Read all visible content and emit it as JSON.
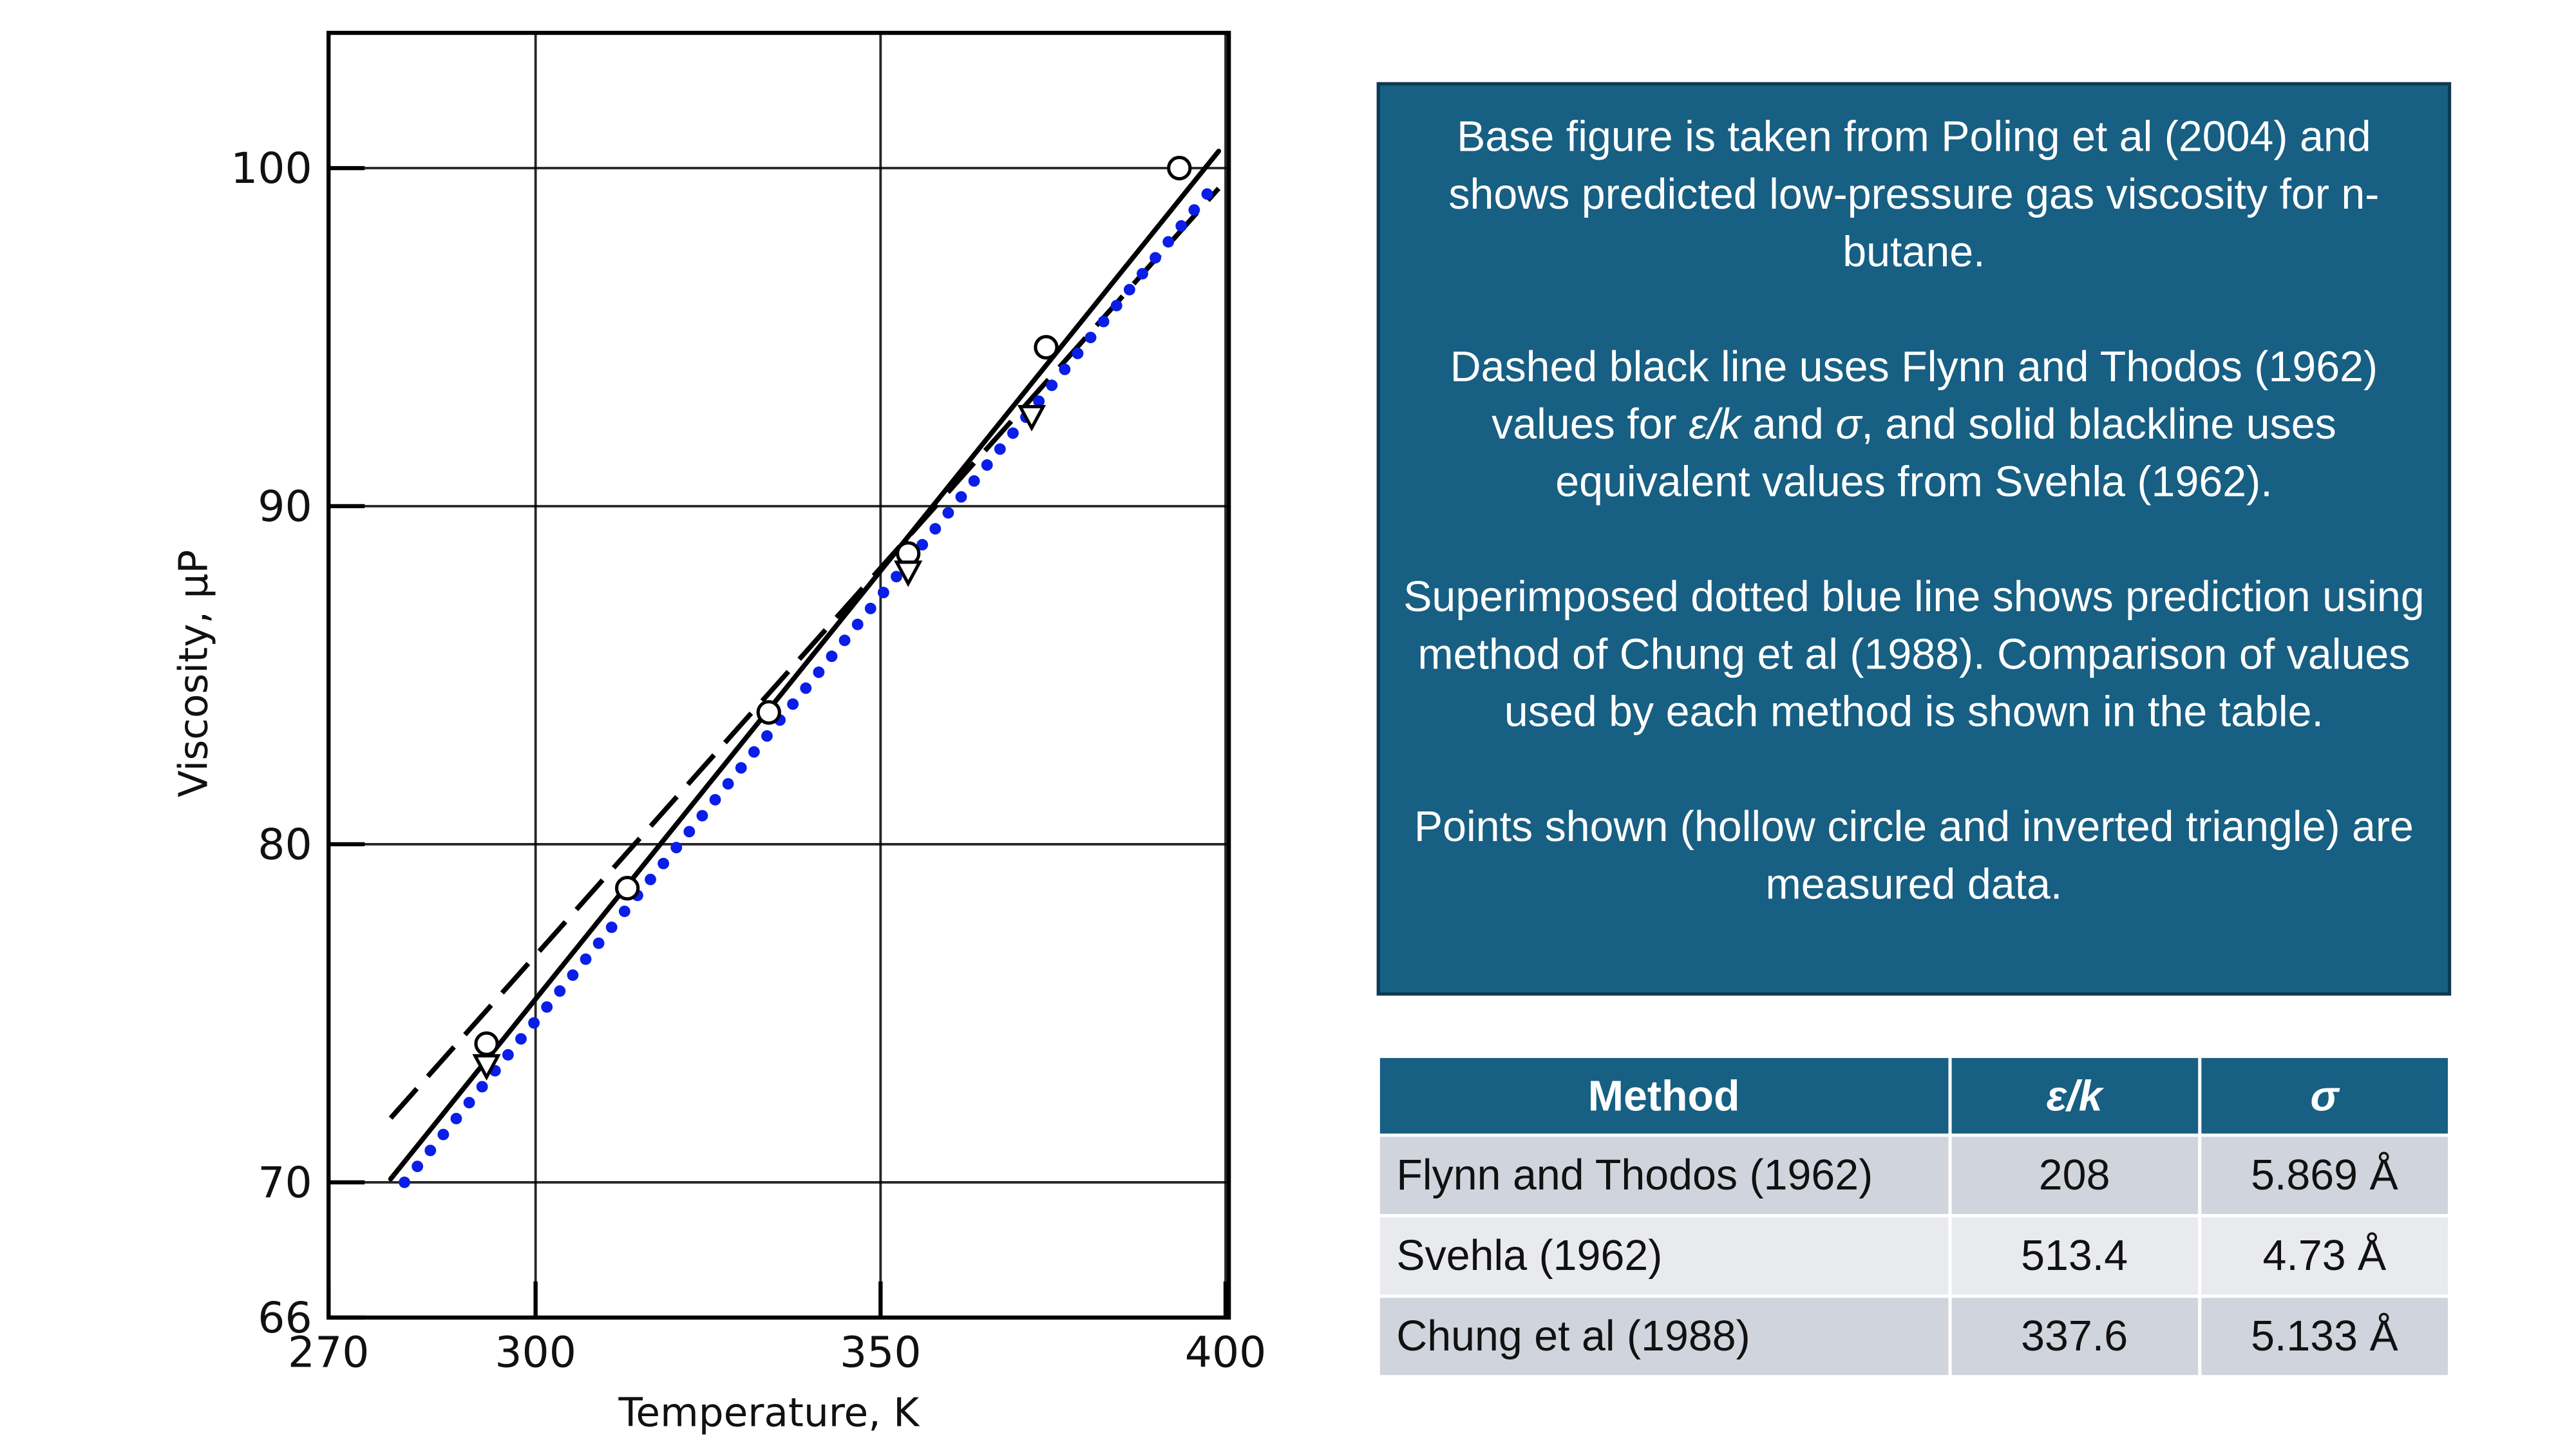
{
  "chart_data": {
    "type": "line",
    "xlabel": "Temperature, K",
    "ylabel": "Viscosity, μP",
    "xlim": [
      270,
      400
    ],
    "xticks": [
      270,
      300,
      350,
      400
    ],
    "ylim": [
      66,
      104
    ],
    "yticks": [
      66,
      70,
      80,
      90,
      100
    ],
    "grid": true,
    "series": [
      {
        "mode": "line",
        "style": "solid",
        "color": "#000000",
        "x": [
          279,
          399
        ],
        "values": [
          70.1,
          100.5
        ]
      },
      {
        "mode": "line",
        "style": "dashed",
        "color": "#000000",
        "x": [
          279,
          399
        ],
        "values": [
          71.9,
          99.4
        ]
      },
      {
        "mode": "line",
        "style": "dotted",
        "color": "#0a1ee8",
        "x": [
          281,
          398
        ],
        "values": [
          70.0,
          99.4
        ]
      },
      {
        "mode": "markers",
        "marker": "circle",
        "color": "#000000",
        "x": [
          292.9,
          313.3,
          333.8,
          354,
          374,
          393.3
        ],
        "values": [
          74.1,
          78.7,
          83.9,
          88.6,
          94.7,
          100.0
        ]
      },
      {
        "mode": "markers",
        "marker": "triangle-down",
        "color": "#000000",
        "x": [
          292.9,
          354,
          371.9
        ],
        "values": [
          73.5,
          88.1,
          92.7
        ]
      }
    ]
  },
  "note": {
    "paragraphs": [
      [
        "Base figure is taken from Poling et al (2004) and shows predicted low-pressure gas viscosity for n-butane."
      ],
      [
        "Dashed black line uses Flynn and Thodos (1962) values for ",
        "ε/k",
        " and ",
        "σ",
        ", and solid blackline uses equivalent values from Svehla (1962)."
      ],
      [
        "Superimposed dotted blue line shows prediction using method of Chung et al (1988). Comparison of values used by each method is shown in the table."
      ],
      [
        "Points shown (hollow circle and inverted triangle) are measured data."
      ]
    ]
  },
  "table": {
    "header": [
      "Method",
      "ε/k",
      "σ"
    ],
    "rows": [
      [
        "Flynn and Thodos (1962)",
        "208",
        "5.869 Å"
      ],
      [
        "Svehla (1962)",
        "513.4",
        "4.73 Å"
      ],
      [
        "Chung et al (1988)",
        "337.6",
        "5.133 Å"
      ]
    ]
  }
}
